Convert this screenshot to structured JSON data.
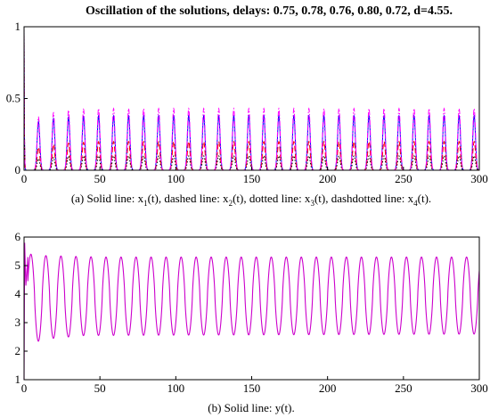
{
  "figure": {
    "title": "Oscillation of the solutions, delays: 0.75, 0.78, 0.76, 0.80, 0.72, d=4.55."
  },
  "captions": {
    "a": {
      "prefix": "(a) Solid line: x",
      "s1": "1",
      "t1": "(t), dashed line: x",
      "s2": "2",
      "t2": "(t), dotted line: x",
      "s3": "3",
      "t3": "(t), dashdotted line: x",
      "s4": "4",
      "t4": "(t)."
    },
    "b": "(b) Solid line: y(t)."
  },
  "chart_data": [
    {
      "type": "line",
      "panel": "a",
      "xlim": [
        0,
        300
      ],
      "ylim": [
        0,
        1
      ],
      "xticks": [
        "0",
        "50",
        "100",
        "150",
        "200",
        "250",
        "300"
      ],
      "yticks": [
        "0",
        "0.5",
        "1"
      ],
      "grid": false,
      "oscillation": {
        "period": 9.9,
        "first_peak": 9.5,
        "initial_value": 1.0
      },
      "series": [
        {
          "label": "x1",
          "style": "solid",
          "color": "#0000ff",
          "peak_envelope": {
            "t": [
              9.5,
              19,
              30,
              50,
              100,
              300
            ],
            "y": [
              0.34,
              0.36,
              0.37,
              0.38,
              0.38,
              0.38
            ]
          }
        },
        {
          "label": "x2",
          "style": "dashed",
          "color": "#ff0000",
          "peak_envelope": {
            "t": [
              9.5,
              19,
              30,
              50,
              100,
              300
            ],
            "y": [
              0.16,
              0.18,
              0.19,
              0.2,
              0.2,
              0.2
            ]
          }
        },
        {
          "label": "x3",
          "style": "dotted",
          "color": "#000000",
          "peak_envelope": {
            "t": [
              9.5,
              19,
              30,
              50,
              100,
              300
            ],
            "y": [
              0.08,
              0.09,
              0.1,
              0.1,
              0.1,
              0.1
            ]
          }
        },
        {
          "label": "x4",
          "style": "dashdot",
          "color": "#ff00ff",
          "peak_envelope": {
            "t": [
              9.5,
              19,
              30,
              50,
              100,
              300
            ],
            "y": [
              0.37,
              0.4,
              0.42,
              0.43,
              0.43,
              0.43
            ]
          }
        }
      ]
    },
    {
      "type": "line",
      "panel": "b",
      "xlim": [
        0,
        300
      ],
      "ylim": [
        1,
        6
      ],
      "xticks": [
        "0",
        "50",
        "100",
        "150",
        "200",
        "250",
        "300"
      ],
      "yticks": [
        "1",
        "2",
        "3",
        "4",
        "5",
        "6"
      ],
      "grid": false,
      "series": [
        {
          "label": "y",
          "style": "solid",
          "color": "#cc00cc",
          "initial": {
            "t": [
              0,
              0.4,
              1.2,
              2.5
            ],
            "y": [
              1.0,
              5.8,
              4.3,
              5.3
            ]
          },
          "oscillation": {
            "period": 9.9,
            "first_peak": 4.5,
            "max_envelope": {
              "t": [
                4.5,
                14,
                50,
                300
              ],
              "y": [
                5.4,
                5.35,
                5.3,
                5.3
              ]
            },
            "min_envelope": {
              "t": [
                9.5,
                19,
                40,
                300
              ],
              "y": [
                2.35,
                2.45,
                2.55,
                2.6
              ]
            }
          }
        }
      ]
    }
  ]
}
